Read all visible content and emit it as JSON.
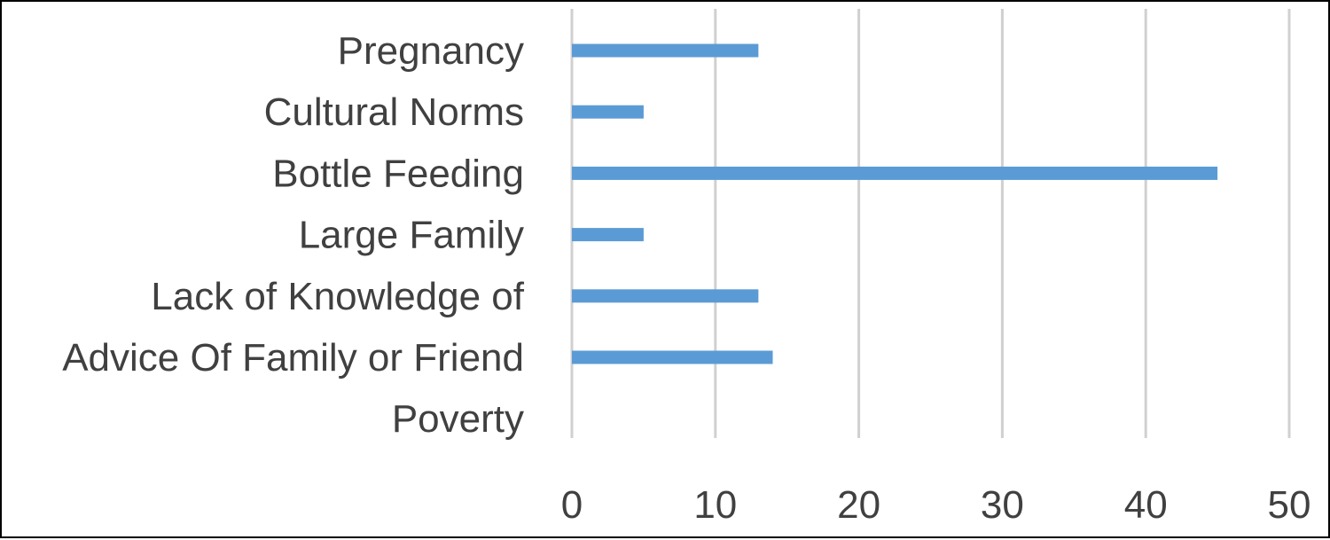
{
  "chart_data": {
    "type": "bar",
    "orientation": "horizontal",
    "categories": [
      "Pregnancy",
      "Cultural Norms",
      "Bottle Feeding",
      "Large Family",
      "Lack of Knowledge of",
      "Advice Of Family or Friend",
      "Poverty"
    ],
    "series": [
      {
        "values": [
          13,
          5,
          45,
          5,
          13,
          14,
          0
        ]
      }
    ],
    "xlim": [
      0,
      50
    ],
    "xticks": [
      0,
      10,
      20,
      30,
      40,
      50
    ],
    "grid": "vertical",
    "legend": "none",
    "colors": {
      "bar": "#5b9bd5",
      "grid": "#d0d0d0",
      "text": "#404040"
    },
    "title": "",
    "xlabel": "",
    "ylabel": ""
  }
}
